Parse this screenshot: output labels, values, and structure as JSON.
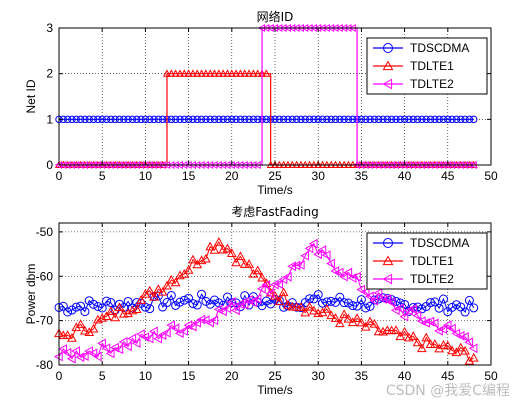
{
  "chart_data": [
    {
      "type": "line",
      "title": "网络ID",
      "xlabel": "Time/s",
      "ylabel": "Net ID",
      "xlim": [
        0,
        50
      ],
      "ylim": [
        0,
        3
      ],
      "xticks": [
        0,
        5,
        10,
        15,
        20,
        25,
        30,
        35,
        40,
        45,
        50
      ],
      "yticks": [
        0,
        1,
        2,
        3
      ],
      "grid": true,
      "legend": "top-right",
      "x_range": [
        0,
        48
      ],
      "series": [
        {
          "name": "TDSCDMA",
          "color": "#0000ff",
          "marker": "circle",
          "step": [
            [
              0,
              1
            ],
            [
              48,
              1
            ]
          ]
        },
        {
          "name": "TDLTE1",
          "color": "#ff0000",
          "marker": "triangle-up",
          "step": [
            [
              0,
              0
            ],
            [
              12.5,
              2
            ],
            [
              24.5,
              0
            ],
            [
              48,
              0
            ]
          ]
        },
        {
          "name": "TDLTE2",
          "color": "#ff00ff",
          "marker": "triangle-left",
          "step": [
            [
              0,
              0
            ],
            [
              23.5,
              3
            ],
            [
              34.5,
              0
            ],
            [
              48,
              0
            ]
          ]
        }
      ]
    },
    {
      "type": "line",
      "title": "考虑FastFading",
      "xlabel": "Time/s",
      "ylabel": "Power dbm",
      "xlim": [
        0,
        50
      ],
      "ylim": [
        -80,
        -48
      ],
      "xticks": [
        0,
        5,
        10,
        15,
        20,
        25,
        30,
        35,
        40,
        45,
        50
      ],
      "yticks": [
        -80,
        -70,
        -60,
        -50
      ],
      "grid": true,
      "legend": "top-right",
      "series": [
        {
          "name": "TDSCDMA",
          "color": "#0000ff",
          "marker": "circle",
          "x": [
            0,
            5,
            10,
            15,
            20,
            25,
            30,
            35,
            40,
            45,
            48
          ],
          "y": [
            -67,
            -66.5,
            -66,
            -65.5,
            -65.5,
            -66,
            -65.5,
            -66,
            -66.5,
            -66.5,
            -67
          ]
        },
        {
          "name": "TDLTE1",
          "color": "#ff0000",
          "marker": "triangle-up",
          "x": [
            0,
            5,
            10,
            15,
            18.5,
            22,
            25,
            30,
            35,
            40,
            45,
            48
          ],
          "y": [
            -74,
            -70,
            -65,
            -58,
            -52,
            -58,
            -64,
            -68,
            -71,
            -74,
            -76.5,
            -78
          ]
        },
        {
          "name": "TDLTE2",
          "color": "#ff00ff",
          "marker": "triangle-left",
          "x": [
            0,
            5,
            10,
            15,
            20,
            25,
            29.5,
            33,
            36,
            40,
            45,
            48
          ],
          "y": [
            -78,
            -76.5,
            -74,
            -71,
            -67,
            -62,
            -54,
            -59,
            -64,
            -68,
            -72,
            -75
          ]
        }
      ]
    }
  ],
  "watermark": "CSDN @我爱C编程"
}
